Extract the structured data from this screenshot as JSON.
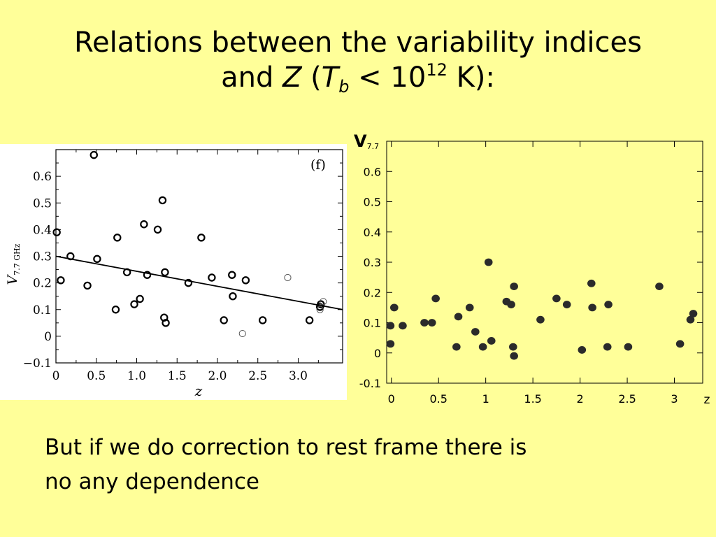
{
  "title": {
    "line1": "Relations between the variability indices",
    "and": "and ",
    "z": "Z",
    "open": " (",
    "t": "T",
    "b": "b",
    "lt": " < 10",
    "exp": "12",
    "unit": " K):"
  },
  "caption": {
    "line1": "But if we do correction to rest frame there is",
    "line2": "no any dependence"
  },
  "chart_data": [
    {
      "type": "scatter",
      "panel_label": "(f)",
      "xlabel": "z",
      "ylabel": "V",
      "ylabel_sub": "7.7 GHz",
      "xlim": [
        0,
        3.55
      ],
      "ylim": [
        -0.1,
        0.7
      ],
      "xticks": [
        "0",
        "0.5",
        "1.0",
        "1.5",
        "2.0",
        "2.5",
        "3.0"
      ],
      "yticks": [
        "−0.1",
        "0",
        "0.1",
        "0.2",
        "0.3",
        "0.4",
        "0.5",
        "0.6"
      ],
      "series": [
        {
          "marker": "open-circle-bold",
          "points": [
            [
              0.01,
              0.39
            ],
            [
              0.06,
              0.21
            ],
            [
              0.18,
              0.3
            ],
            [
              0.39,
              0.19
            ],
            [
              0.47,
              0.68
            ],
            [
              0.51,
              0.29
            ],
            [
              0.74,
              0.1
            ],
            [
              0.76,
              0.37
            ],
            [
              0.88,
              0.24
            ],
            [
              0.97,
              0.12
            ],
            [
              1.04,
              0.14
            ],
            [
              1.09,
              0.42
            ],
            [
              1.13,
              0.23
            ],
            [
              1.26,
              0.4
            ],
            [
              1.32,
              0.51
            ],
            [
              1.34,
              0.07
            ],
            [
              1.35,
              0.24
            ],
            [
              1.36,
              0.05
            ],
            [
              1.64,
              0.2
            ],
            [
              1.8,
              0.37
            ],
            [
              1.93,
              0.22
            ],
            [
              2.08,
              0.06
            ],
            [
              2.18,
              0.23
            ],
            [
              2.19,
              0.15
            ],
            [
              2.35,
              0.21
            ],
            [
              2.56,
              0.06
            ],
            [
              3.14,
              0.06
            ],
            [
              3.27,
              0.11
            ],
            [
              3.28,
              0.12
            ]
          ]
        },
        {
          "marker": "open-circle-thin",
          "points": [
            [
              2.31,
              0.01
            ],
            [
              2.87,
              0.22
            ],
            [
              3.27,
              0.1
            ],
            [
              3.31,
              0.13
            ]
          ]
        }
      ],
      "fit_line": [
        [
          0,
          0.3
        ],
        [
          3.55,
          0.1
        ]
      ]
    },
    {
      "type": "scatter",
      "xlabel": "z",
      "ylabel": "V",
      "ylabel_sub": "7.7",
      "xlim": [
        -0.05,
        3.3
      ],
      "ylim": [
        -0.1,
        0.7
      ],
      "xticks": [
        "0",
        "0.5",
        "1",
        "1.5",
        "2",
        "2.5",
        "3"
      ],
      "yticks": [
        "-0.1",
        "0",
        "0.1",
        "0.2",
        "0.3",
        "0.4",
        "0.5",
        "0.6"
      ],
      "series": [
        {
          "marker": "filled-circle",
          "points": [
            [
              -0.01,
              0.09
            ],
            [
              -0.01,
              0.03
            ],
            [
              0.03,
              0.15
            ],
            [
              0.12,
              0.09
            ],
            [
              0.35,
              0.1
            ],
            [
              0.43,
              0.1
            ],
            [
              0.47,
              0.18
            ],
            [
              0.69,
              0.02
            ],
            [
              0.71,
              0.12
            ],
            [
              0.83,
              0.15
            ],
            [
              0.89,
              0.07
            ],
            [
              0.97,
              0.02
            ],
            [
              1.03,
              0.3
            ],
            [
              1.06,
              0.04
            ],
            [
              1.22,
              0.17
            ],
            [
              1.27,
              0.16
            ],
            [
              1.29,
              0.02
            ],
            [
              1.3,
              0.22
            ],
            [
              1.3,
              -0.01
            ],
            [
              1.58,
              0.11
            ],
            [
              1.75,
              0.18
            ],
            [
              1.86,
              0.16
            ],
            [
              2.02,
              0.01
            ],
            [
              2.12,
              0.23
            ],
            [
              2.13,
              0.15
            ],
            [
              2.29,
              0.02
            ],
            [
              2.3,
              0.16
            ],
            [
              2.51,
              0.02
            ],
            [
              2.84,
              0.22
            ],
            [
              3.06,
              0.03
            ],
            [
              3.17,
              0.11
            ],
            [
              3.2,
              0.13
            ]
          ]
        }
      ]
    }
  ]
}
